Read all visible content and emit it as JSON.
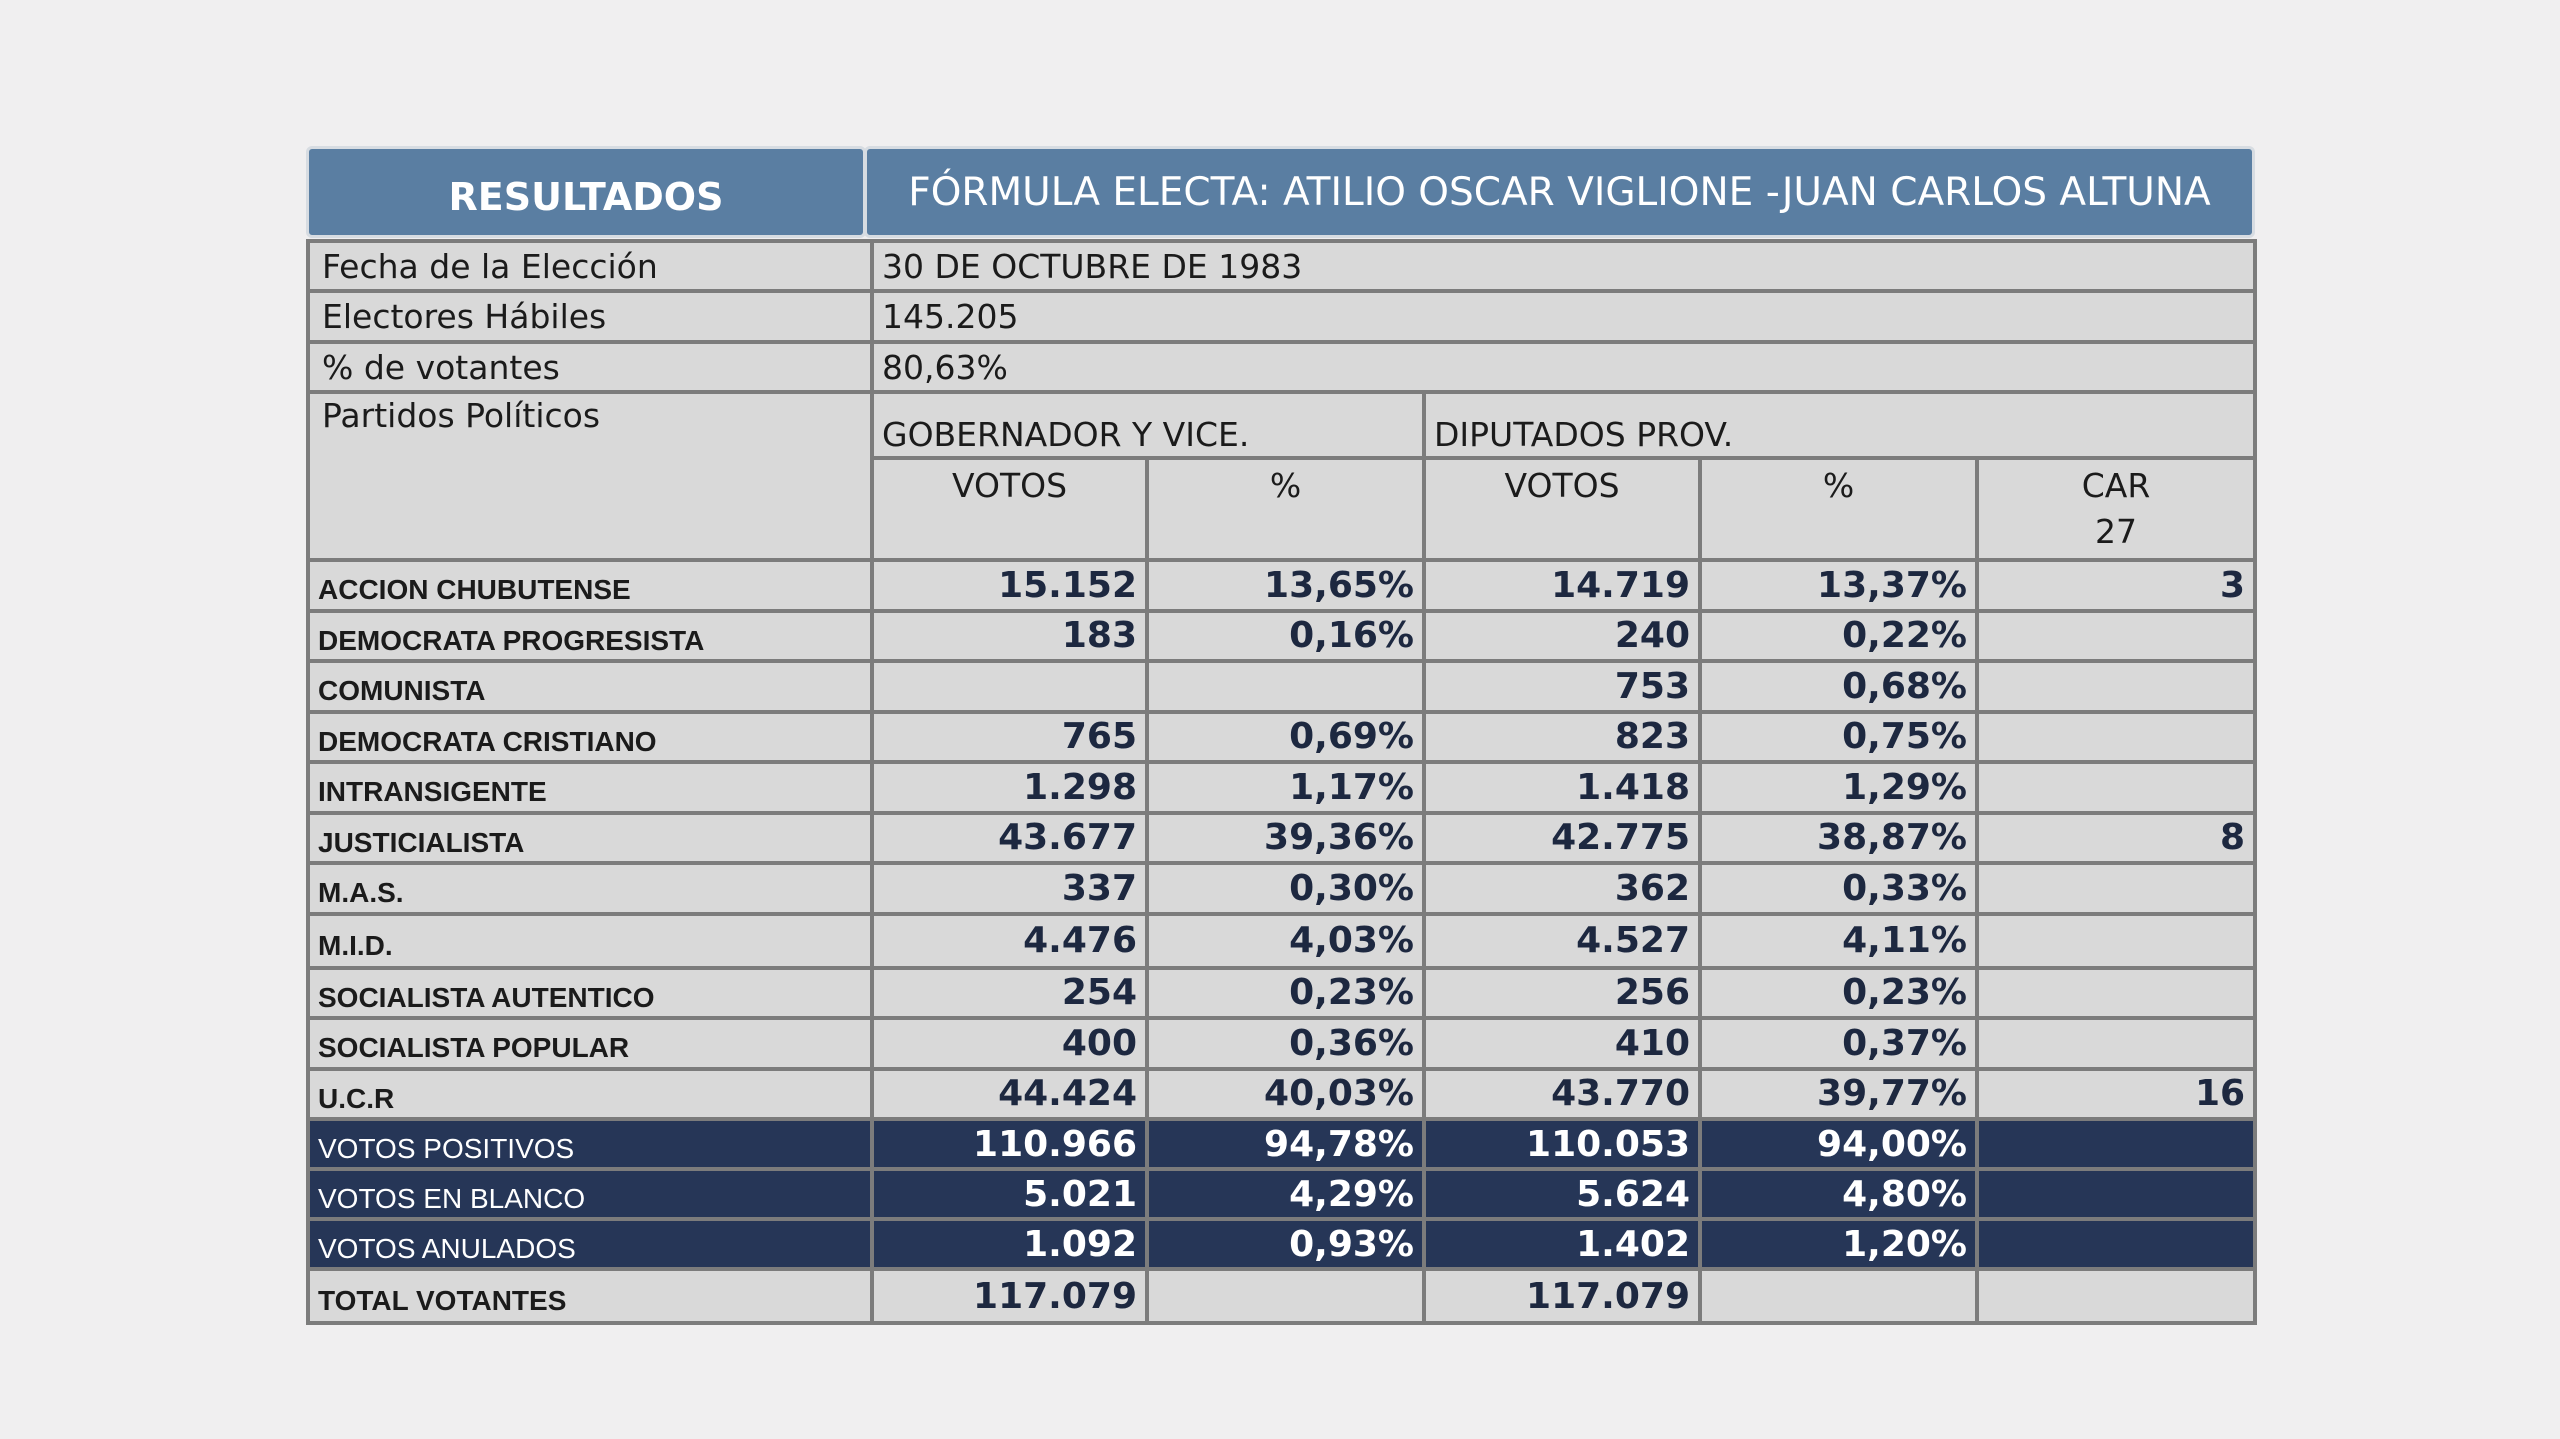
{
  "header": {
    "left_title": "RESULTADOS",
    "right_title": "FÓRMULA ELECTA: ATILIO OSCAR VIGLIONE -JUAN CARLOS ALTUNA"
  },
  "info": {
    "fecha_label": "Fecha de la Elección",
    "fecha_value": "30 DE OCTUBRE DE 1983",
    "electores_label": "Electores Hábiles",
    "electores_value": "145.205",
    "votantes_label": "% de votantes",
    "votantes_value": "80,63%"
  },
  "columns": {
    "partidos": "Partidos Políticos",
    "gobernador": "GOBERNADOR Y VICE.",
    "diputados": "DIPUTADOS PROV.",
    "votos1": "VOTOS",
    "pct1": "%",
    "votos2": "VOTOS",
    "pct2": "%",
    "car_line1": "CAR",
    "car_line2": "27"
  },
  "rows": [
    {
      "party": "ACCION CHUBUTENSE",
      "gv": "15.152",
      "gp": "13,65%",
      "dv": "14.719",
      "dp": "13,37%",
      "car": "3"
    },
    {
      "party": "DEMOCRATA PROGRESISTA",
      "gv": "183",
      "gp": "0,16%",
      "dv": "240",
      "dp": "0,22%",
      "car": ""
    },
    {
      "party": "COMUNISTA",
      "gv": "",
      "gp": "",
      "dv": "753",
      "dp": "0,68%",
      "car": ""
    },
    {
      "party": "DEMOCRATA CRISTIANO",
      "gv": "765",
      "gp": "0,69%",
      "dv": "823",
      "dp": "0,75%",
      "car": ""
    },
    {
      "party": "INTRANSIGENTE",
      "gv": "1.298",
      "gp": "1,17%",
      "dv": "1.418",
      "dp": "1,29%",
      "car": ""
    },
    {
      "party": "JUSTICIALISTA",
      "gv": "43.677",
      "gp": "39,36%",
      "dv": "42.775",
      "dp": "38,87%",
      "car": "8"
    },
    {
      "party": "M.A.S.",
      "gv": "337",
      "gp": "0,30%",
      "dv": "362",
      "dp": "0,33%",
      "car": ""
    },
    {
      "party": "M.I.D.",
      "gv": "4.476",
      "gp": "4,03%",
      "dv": "4.527",
      "dp": "4,11%",
      "car": ""
    },
    {
      "party": "SOCIALISTA AUTENTICO",
      "gv": "254",
      "gp": "0,23%",
      "dv": "256",
      "dp": "0,23%",
      "car": ""
    },
    {
      "party": "SOCIALISTA POPULAR",
      "gv": "400",
      "gp": "0,36%",
      "dv": "410",
      "dp": "0,37%",
      "car": ""
    },
    {
      "party": "U.C.R",
      "gv": "44.424",
      "gp": "40,03%",
      "dv": "43.770",
      "dp": "39,77%",
      "car": "16"
    }
  ],
  "summary": [
    {
      "party": "VOTOS POSITIVOS",
      "gv": "110.966",
      "gp": "94,78%",
      "dv": "110.053",
      "dp": "94,00%",
      "car": ""
    },
    {
      "party": "VOTOS EN BLANCO",
      "gv": "5.021",
      "gp": "4,29%",
      "dv": "5.624",
      "dp": "4,80%",
      "car": ""
    },
    {
      "party": "VOTOS ANULADOS",
      "gv": "1.092",
      "gp": "0,93%",
      "dv": "1.402",
      "dp": "1,20%",
      "car": ""
    }
  ],
  "total": {
    "party": "TOTAL VOTANTES",
    "gv": "117.079",
    "gp": "",
    "dv": "117.079",
    "dp": "",
    "car": ""
  }
}
